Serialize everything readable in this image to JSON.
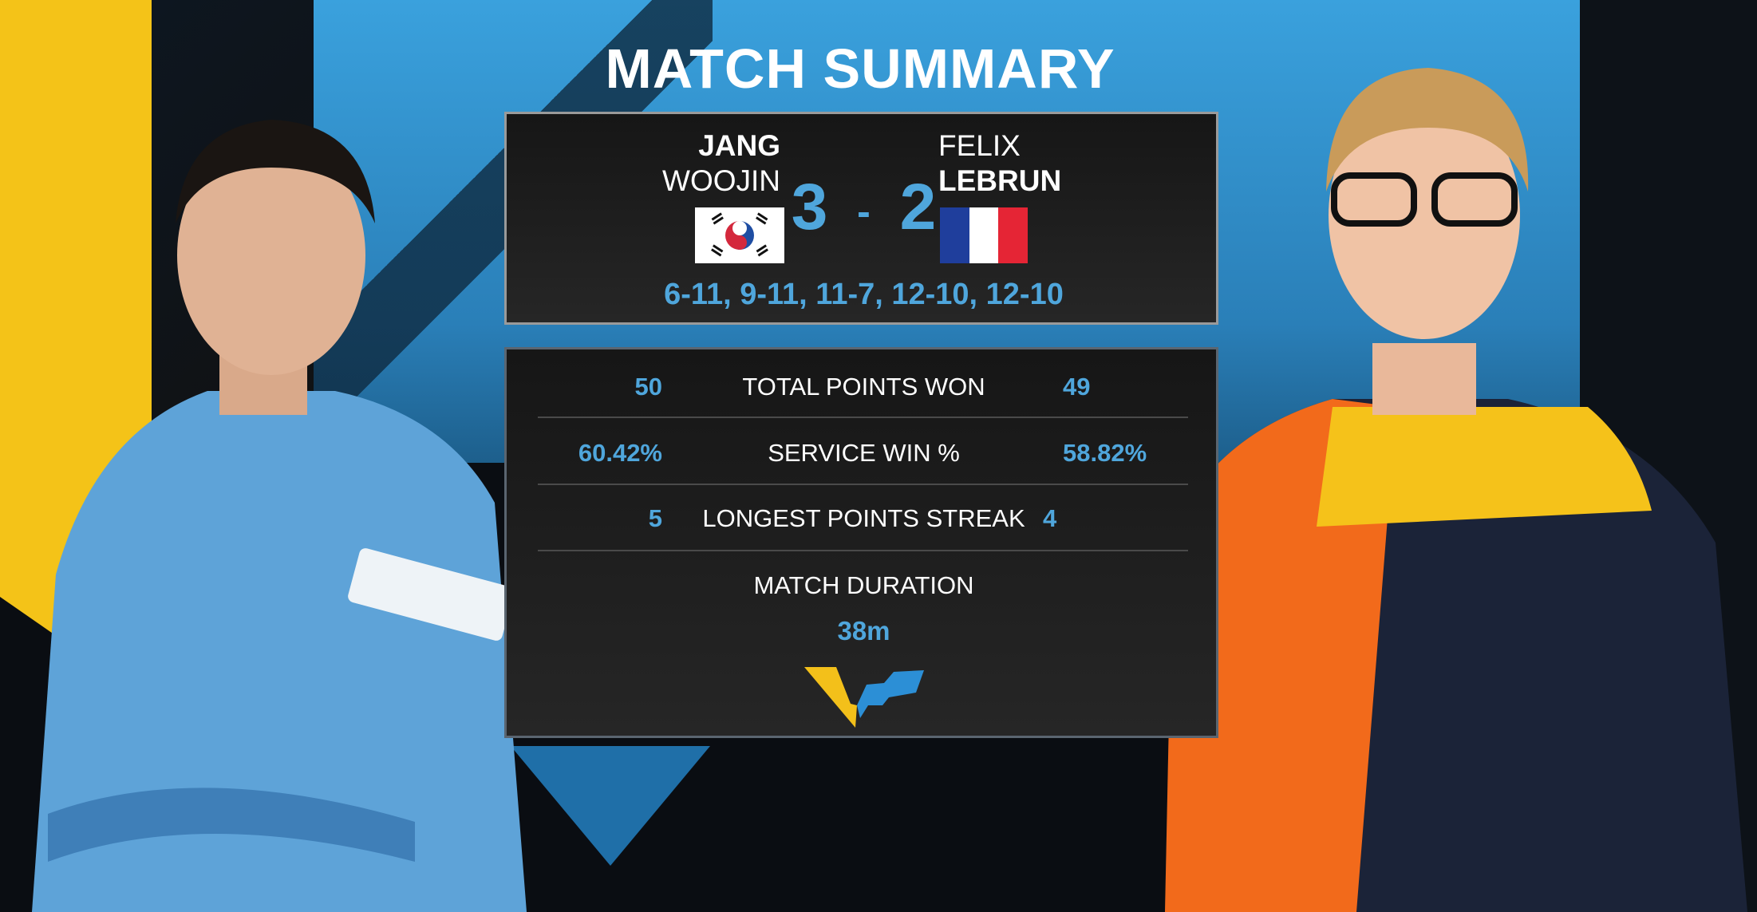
{
  "title": "MATCH SUMMARY",
  "player1": {
    "first": "JANG",
    "last": "WOOJIN",
    "flag": "south-korea-flag",
    "score": 3
  },
  "player2": {
    "first": "FELIX",
    "last": "LEBRUN",
    "flag": "france-flag",
    "score": 2
  },
  "score_separator": "-",
  "set_scores": "6-11, 9-11, 11-7, 12-10, 12-10",
  "stats": [
    {
      "label": "TOTAL POINTS WON",
      "p1": "50",
      "p2": "49"
    },
    {
      "label": "SERVICE WIN %",
      "p1": "60.42%",
      "p2": "58.82%"
    },
    {
      "label": "LONGEST POINTS STREAK",
      "p1": "5",
      "p2": "4"
    }
  ],
  "duration": {
    "label": "MATCH DURATION",
    "value": "38m"
  },
  "colors": {
    "accent_blue": "#4fa6dc",
    "brand_yellow": "#f4c318",
    "panel_bg": "#1b1b1b"
  }
}
